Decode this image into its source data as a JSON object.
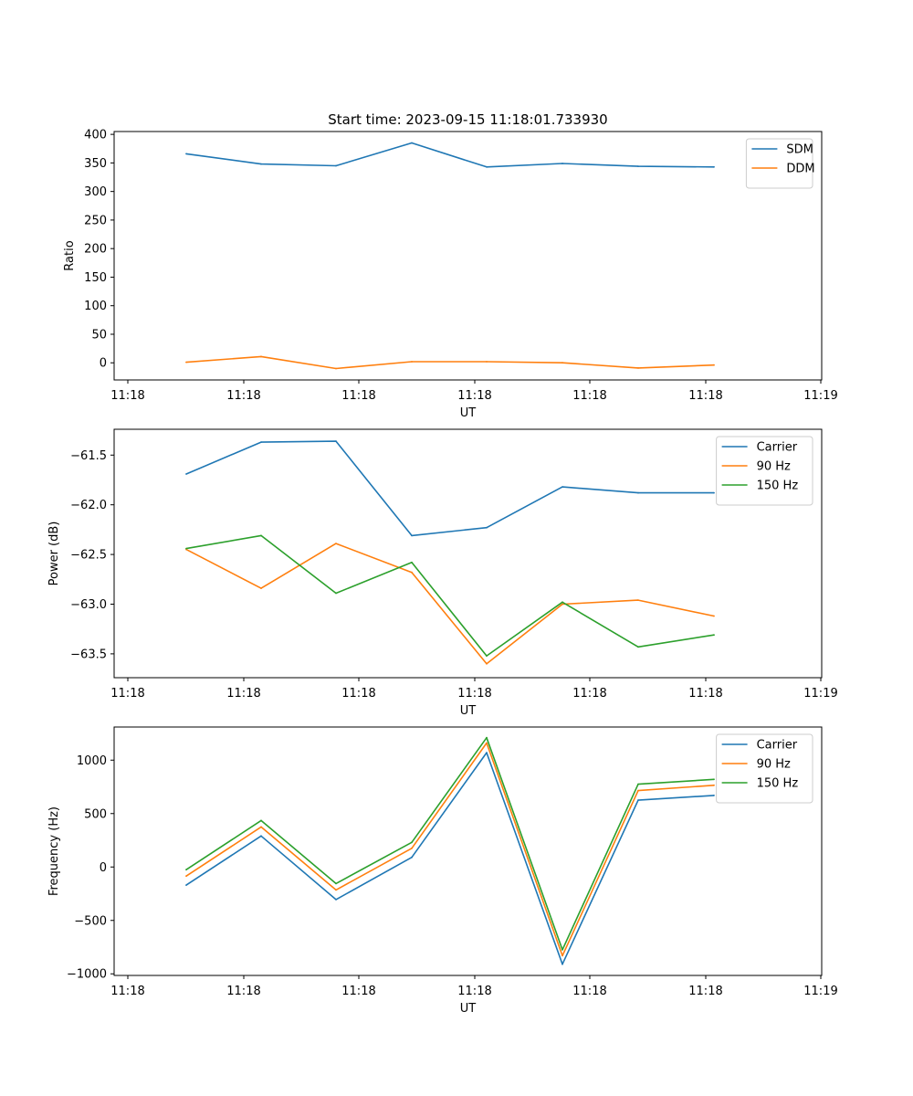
{
  "chart_data": [
    {
      "type": "line",
      "title": "Start time: 2023-09-15 11:18:01.733930",
      "xlabel": "UT",
      "ylabel": "Ratio",
      "x_tick_labels": [
        "11:18",
        "11:18",
        "11:18",
        "11:18",
        "11:18",
        "11:18",
        "11:19"
      ],
      "y_ticks": [
        0,
        50,
        100,
        150,
        200,
        250,
        300,
        350,
        400
      ],
      "y_tick_labels": [
        "0",
        "50",
        "100",
        "150",
        "200",
        "250",
        "300",
        "350",
        "400"
      ],
      "ylim": [
        -30,
        405
      ],
      "legend": "top-right",
      "series": [
        {
          "name": "SDM",
          "color": "#1f77b4",
          "values": [
            366,
            348,
            345,
            385,
            343,
            349,
            344,
            343
          ]
        },
        {
          "name": "DDM",
          "color": "#ff7f0e",
          "values": [
            1,
            11,
            -10,
            2,
            2,
            0,
            -9,
            -4
          ]
        }
      ]
    },
    {
      "type": "line",
      "title": "",
      "xlabel": "UT",
      "ylabel": "Power (dB)",
      "x_tick_labels": [
        "11:18",
        "11:18",
        "11:18",
        "11:18",
        "11:18",
        "11:18",
        "11:19"
      ],
      "y_ticks": [
        -61.5,
        -62.0,
        -62.5,
        -63.0,
        -63.5
      ],
      "y_tick_labels": [
        "−61.5",
        "−62.0",
        "−62.5",
        "−63.0",
        "−63.5"
      ],
      "ylim": [
        -63.74,
        -61.24
      ],
      "legend": "top-right",
      "series": [
        {
          "name": "Carrier",
          "color": "#1f77b4",
          "values": [
            -61.69,
            -61.37,
            -61.36,
            -62.31,
            -62.23,
            -61.82,
            -61.88,
            -61.88
          ]
        },
        {
          "name": "90 Hz",
          "color": "#ff7f0e",
          "values": [
            -62.45,
            -62.84,
            -62.39,
            -62.68,
            -63.6,
            -63.0,
            -62.96,
            -63.12
          ]
        },
        {
          "name": "150 Hz",
          "color": "#2ca02c",
          "values": [
            -62.44,
            -62.31,
            -62.89,
            -62.58,
            -63.52,
            -62.98,
            -63.43,
            -63.31
          ]
        }
      ]
    },
    {
      "type": "line",
      "title": "",
      "xlabel": "UT",
      "ylabel": "Frequency (Hz)",
      "x_tick_labels": [
        "11:18",
        "11:18",
        "11:18",
        "11:18",
        "11:18",
        "11:18",
        "11:19"
      ],
      "y_ticks": [
        1000,
        500,
        0,
        -500,
        -1000
      ],
      "y_tick_labels": [
        "1000",
        "500",
        "0",
        "−500",
        "−1000"
      ],
      "ylim": [
        -1015,
        1310
      ],
      "legend": "top-right",
      "series": [
        {
          "name": "Carrier",
          "color": "#1f77b4",
          "values": [
            -170,
            290,
            -305,
            90,
            1070,
            -910,
            625,
            670
          ]
        },
        {
          "name": "90 Hz",
          "color": "#ff7f0e",
          "values": [
            -85,
            375,
            -215,
            175,
            1160,
            -830,
            715,
            765
          ]
        },
        {
          "name": "150 Hz",
          "color": "#2ca02c",
          "values": [
            -25,
            435,
            -155,
            230,
            1210,
            -775,
            775,
            820
          ]
        }
      ]
    }
  ]
}
